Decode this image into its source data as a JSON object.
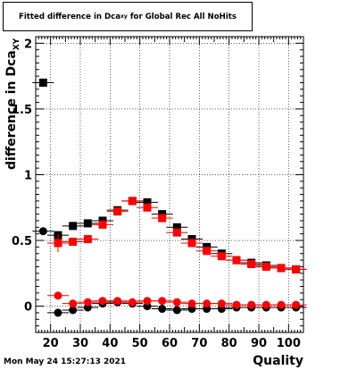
{
  "title": {
    "main": "Fitted difference in Dca",
    "subscript": "xy",
    "rest": " for Global Rec All NoHits"
  },
  "timestamp": "Mon May 24 15:27:13 2021",
  "chart_data": {
    "type": "scatter",
    "xlabel": "Quality",
    "ylabel": "difference in Dca",
    "ylabel_subscript": "XY",
    "xlim": [
      15,
      105
    ],
    "ylim": [
      -0.2,
      2.05
    ],
    "xticks": [
      20,
      30,
      40,
      50,
      60,
      70,
      80,
      90,
      100
    ],
    "yticks": [
      0,
      0.5,
      1,
      1.5,
      2
    ],
    "grid": true,
    "series": [
      {
        "marker": "square",
        "color": "#000000",
        "x": [
          17.5,
          22.5,
          27.5,
          32.5,
          37.5,
          42.5,
          47.5,
          52.5,
          57.5,
          62.5,
          67.5,
          72.5,
          77.5,
          82.5,
          87.5,
          92.5,
          97.5,
          102.5
        ],
        "values": [
          1.7,
          0.54,
          0.61,
          0.63,
          0.65,
          0.73,
          0.8,
          0.79,
          0.7,
          0.6,
          0.51,
          0.45,
          0.4,
          0.35,
          0.33,
          0.31,
          0.29,
          0.28
        ],
        "errors": [
          0.01,
          0.03,
          0.02,
          0.02,
          0.02,
          0.02,
          0.02,
          0.02,
          0.02,
          0.02,
          0.02,
          0.02,
          0.02,
          0.02,
          0.02,
          0.02,
          0.02,
          0.02
        ]
      },
      {
        "marker": "square",
        "color": "#ff0000",
        "x": [
          22.5,
          27.5,
          32.5,
          37.5,
          42.5,
          47.5,
          52.5,
          57.5,
          62.5,
          67.5,
          72.5,
          77.5,
          82.5,
          87.5,
          92.5,
          97.5,
          102.5
        ],
        "values": [
          0.48,
          0.49,
          0.51,
          0.62,
          0.72,
          0.8,
          0.75,
          0.67,
          0.56,
          0.48,
          0.42,
          0.38,
          0.35,
          0.32,
          0.3,
          0.29,
          0.28
        ],
        "errors": [
          0.07,
          0.03,
          0.02,
          0.02,
          0.02,
          0.02,
          0.02,
          0.02,
          0.02,
          0.02,
          0.02,
          0.02,
          0.02,
          0.02,
          0.02,
          0.02,
          0.02
        ]
      },
      {
        "marker": "circle",
        "color": "#000000",
        "x": [
          17.5,
          22.5,
          27.5,
          32.5,
          37.5,
          42.5,
          47.5,
          52.5,
          57.5,
          62.5,
          67.5,
          72.5,
          77.5,
          82.5,
          87.5,
          92.5,
          97.5,
          102.5
        ],
        "values": [
          0.57,
          -0.05,
          -0.03,
          -0.01,
          0.02,
          0.03,
          0.02,
          0.0,
          -0.02,
          -0.03,
          -0.02,
          -0.02,
          -0.02,
          -0.01,
          -0.01,
          -0.01,
          -0.01,
          -0.01
        ],
        "errors": [
          0.01,
          0.03,
          0.02,
          0.02,
          0.02,
          0.02,
          0.02,
          0.02,
          0.02,
          0.02,
          0.02,
          0.02,
          0.02,
          0.02,
          0.02,
          0.02,
          0.02,
          0.02
        ]
      },
      {
        "marker": "circle",
        "color": "#ff0000",
        "x": [
          22.5,
          27.5,
          32.5,
          37.5,
          42.5,
          47.5,
          52.5,
          57.5,
          62.5,
          67.5,
          72.5,
          77.5,
          82.5,
          87.5,
          92.5,
          97.5,
          102.5
        ],
        "values": [
          0.08,
          0.02,
          0.03,
          0.04,
          0.04,
          0.03,
          0.04,
          0.04,
          0.03,
          0.02,
          0.02,
          0.02,
          0.01,
          0.01,
          0.01,
          0.01,
          0.01
        ],
        "errors": [
          0.03,
          0.02,
          0.02,
          0.02,
          0.02,
          0.02,
          0.02,
          0.02,
          0.02,
          0.02,
          0.02,
          0.02,
          0.02,
          0.02,
          0.02,
          0.02,
          0.02
        ]
      }
    ]
  }
}
